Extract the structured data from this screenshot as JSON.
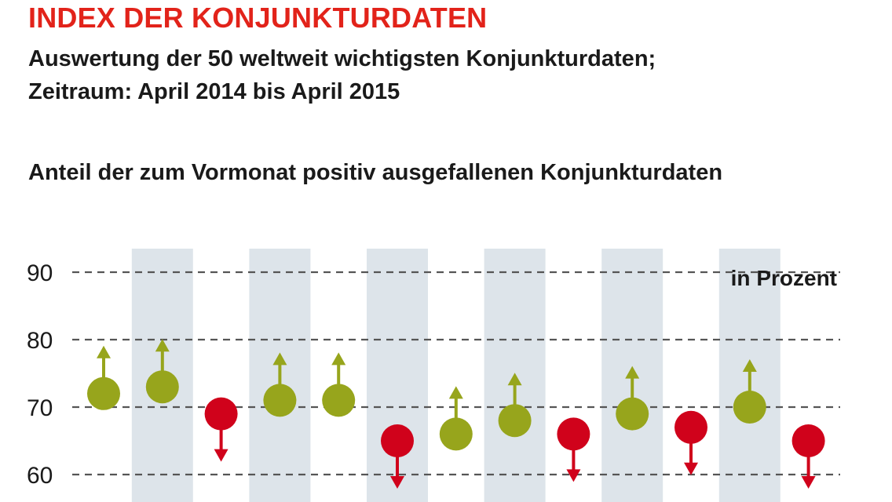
{
  "header": {
    "title": "INDEX DER KONJUNKTURDATEN",
    "subtitle_line1": "Auswertung der 50 weltweit wichtigsten Konjunkturdaten;",
    "subtitle_line2": "Zeitraum: April 2014 bis April 2015",
    "chart_heading": "Anteil der zum Vormonat positiv ausgefallenen Konjunkturdaten"
  },
  "chart_data": {
    "type": "scatter",
    "title": "Anteil der zum Vormonat positiv ausgefallenen Konjunkturdaten",
    "unit_label": "in Prozent",
    "ylim": [
      55,
      92
    ],
    "y_ticks": [
      60,
      70,
      80,
      90
    ],
    "y_tick_labels": [
      "60",
      "70",
      "80",
      "90"
    ],
    "grid": "horizontal dashed",
    "alternating_column_shading": true,
    "values": [
      72,
      73,
      69,
      71,
      71,
      65,
      66,
      68,
      66,
      69,
      67,
      70,
      65
    ],
    "directions": [
      "up",
      "up",
      "down",
      "up",
      "up",
      "down",
      "up",
      "up",
      "down",
      "up",
      "down",
      "up",
      "down"
    ],
    "colors": {
      "up": "#97a51c",
      "down": "#d0021b",
      "grid": "#555555",
      "shade": "#dde4ea"
    }
  }
}
